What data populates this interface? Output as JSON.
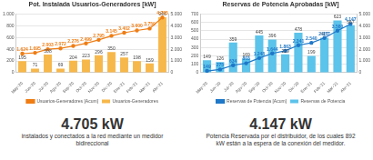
{
  "chart_data": [
    {
      "type": "bar",
      "title": "Pot. Instalada Usuarios-Generadores [kW]",
      "categories": [
        "May-'20",
        "Jun-'20",
        "Jul-'20",
        "Ago-'20",
        "Sep-'20",
        "Oct-'20",
        "Nov-'20",
        "Dic-'20",
        "Ene-'21",
        "Feb-'21",
        "Mar-'21",
        "Abr-'21"
      ],
      "series": [
        {
          "name": "Usuarios-Generadores",
          "type": "bar",
          "color": "#f7b84b",
          "values": [
            195,
            71,
            308,
            69,
            204,
            223,
            296,
            350,
            257,
            198,
            159,
            946
          ]
        },
        {
          "name": "Usuarios-Generadores [Acum]",
          "type": "line",
          "axis": "y2",
          "color": "#ef7d14",
          "marker": "circle",
          "values": [
            1624,
            1695,
            2003,
            2072,
            2276,
            2499,
            2795,
            3145,
            3402,
            3600,
            3759,
            4705
          ],
          "value_labels": [
            "1.624",
            "1.695",
            "2.003",
            "2.072",
            "2.276",
            "2.499",
            "2.795",
            "3.145",
            "3.402",
            "3.600",
            "3.759",
            "4.705"
          ]
        }
      ],
      "ylim": [
        0,
        1000
      ],
      "yticks": [
        0,
        200,
        400,
        600,
        800,
        {
          "value": 1000,
          "label": "1.000"
        }
      ],
      "y2lim": [
        0,
        5000
      ],
      "y2ticks": [
        0,
        {
          "value": 1000,
          "label": "1.000"
        },
        {
          "value": 2000,
          "label": "2.000"
        },
        {
          "value": 3000,
          "label": "3.000"
        },
        {
          "value": 4000,
          "label": "4.000"
        },
        {
          "value": 5000,
          "label": "5.000"
        }
      ],
      "grid": true,
      "legend": "bottom",
      "data_labels": true
    },
    {
      "type": "bar",
      "title": "Reservas de Potencia Aprobadas [kW]",
      "categories": [
        "May-'20",
        "Jun-'20",
        "Jul-'20",
        "Ago-'20",
        "Sep-'20",
        "Oct-'20",
        "Nov-'20",
        "Dic-'20",
        "Ene-'21",
        "Feb-'21",
        "Mar-'21",
        "Abr-'21"
      ],
      "series": [
        {
          "name": "Reservas de Potencia",
          "type": "bar",
          "color": "#5cc3ea",
          "values": [
            149,
            126,
            359,
            169,
            445,
            396,
            219,
            478,
            199,
            417,
            623,
            567
          ]
        },
        {
          "name": "Reservas de Potencia [Acum]",
          "type": "line",
          "axis": "y2",
          "color": "#1f78c8",
          "marker": "circle",
          "values": [
            149,
            275,
            634,
            803,
            1248,
            1644,
            1863,
            2341,
            2540,
            2957,
            3580,
            4147
          ],
          "value_labels": [
            "149",
            "275",
            "634",
            "803",
            "1.248",
            "1.644",
            "1.863",
            "2.341",
            "2.540",
            "2.957",
            "3.580",
            "4.147"
          ]
        }
      ],
      "ylim": [
        0,
        700
      ],
      "yticks": [
        0,
        100,
        200,
        300,
        400,
        500,
        600,
        700
      ],
      "y2lim": [
        0,
        5000
      ],
      "y2ticks": [
        0,
        {
          "value": 1000,
          "label": "1.000"
        },
        {
          "value": 2000,
          "label": "2.000"
        },
        {
          "value": 3000,
          "label": "3.000"
        },
        {
          "value": 4000,
          "label": "4.000"
        },
        {
          "value": 5000,
          "label": "5.000"
        }
      ],
      "grid": true,
      "legend": "bottom",
      "data_labels": true
    }
  ],
  "highlights": [
    {
      "value": "4.705 kW",
      "caption": "instalados y conectados a la red mediante un medidor bidireccional"
    },
    {
      "value": "4.147 kW",
      "caption": "Potencia Reservada por el distribuidor, de los cuales 892 kW están a la espera de la conexión del medidor."
    }
  ]
}
